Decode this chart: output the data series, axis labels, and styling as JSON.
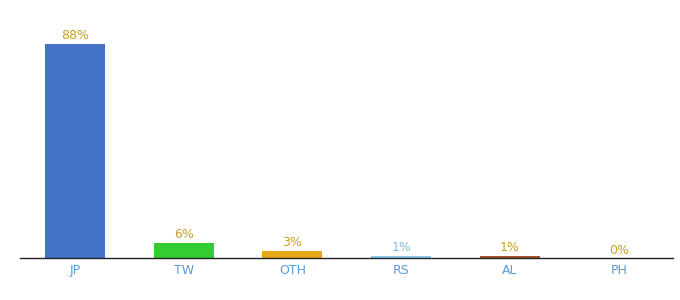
{
  "categories": [
    "JP",
    "TW",
    "OTH",
    "RS",
    "AL",
    "PH"
  ],
  "values": [
    88,
    6,
    3,
    1,
    1,
    0
  ],
  "labels": [
    "88%",
    "6%",
    "3%",
    "1%",
    "1%",
    "0%"
  ],
  "bar_colors": [
    "#4472c4",
    "#33cc33",
    "#e6a817",
    "#88ccee",
    "#a0522d",
    "#cccccc"
  ],
  "background_color": "#ffffff",
  "label_colors": [
    "#c8a028",
    "#c8a028",
    "#c8a028",
    "#88bbdd",
    "#c8a028",
    "#c8a028"
  ],
  "xtick_color": "#5b9bd5",
  "ylim": [
    0,
    96
  ],
  "bar_width": 0.55,
  "label_fontsize": 9,
  "xtick_fontsize": 9
}
